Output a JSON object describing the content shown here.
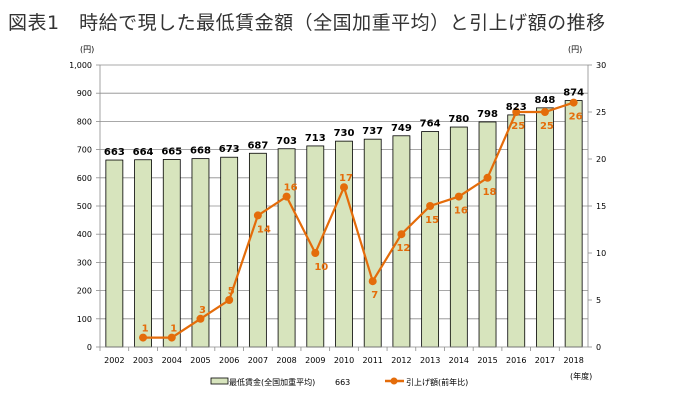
{
  "title": "図表1　時給で現した最低賃金額（全国加重平均）と引上げ額の推移",
  "chart_data": {
    "type": "bar+line",
    "categories": [
      "2002",
      "2003",
      "2004",
      "2005",
      "2006",
      "2007",
      "2008",
      "2009",
      "2010",
      "2011",
      "2012",
      "2013",
      "2014",
      "2015",
      "2016",
      "2017",
      "2018"
    ],
    "series": [
      {
        "name": "最低賃金(全国加重平均)",
        "type": "bar",
        "axis": "left",
        "values": [
          663,
          664,
          665,
          668,
          673,
          687,
          703,
          713,
          730,
          737,
          749,
          764,
          780,
          798,
          823,
          848,
          874
        ],
        "color": "#d7e4bd",
        "border": "#000000"
      },
      {
        "name": "引上げ額(前年比)",
        "type": "line",
        "axis": "right",
        "values": [
          null,
          1,
          1,
          3,
          5,
          14,
          16,
          10,
          17,
          7,
          12,
          15,
          16,
          18,
          25,
          25,
          26
        ],
        "color": "#e46c0a"
      }
    ],
    "left_axis": {
      "unit": "(円)",
      "ylim": [
        0,
        1000
      ],
      "ticks": [
        "0",
        "100",
        "200",
        "300",
        "400",
        "500",
        "600",
        "700",
        "800",
        "900",
        "1,000"
      ]
    },
    "right_axis": {
      "unit": "(円)",
      "ylim": [
        0,
        30
      ],
      "ticks": [
        "0",
        "5",
        "10",
        "15",
        "20",
        "25",
        "30"
      ]
    },
    "xlabel": "(年度)",
    "legend": {
      "placement": "bottom",
      "bar_label": "最低賃金(全国加重平均)",
      "bar_extra": "663",
      "line_label": "引上げ額(前年比)"
    },
    "grid": true
  }
}
